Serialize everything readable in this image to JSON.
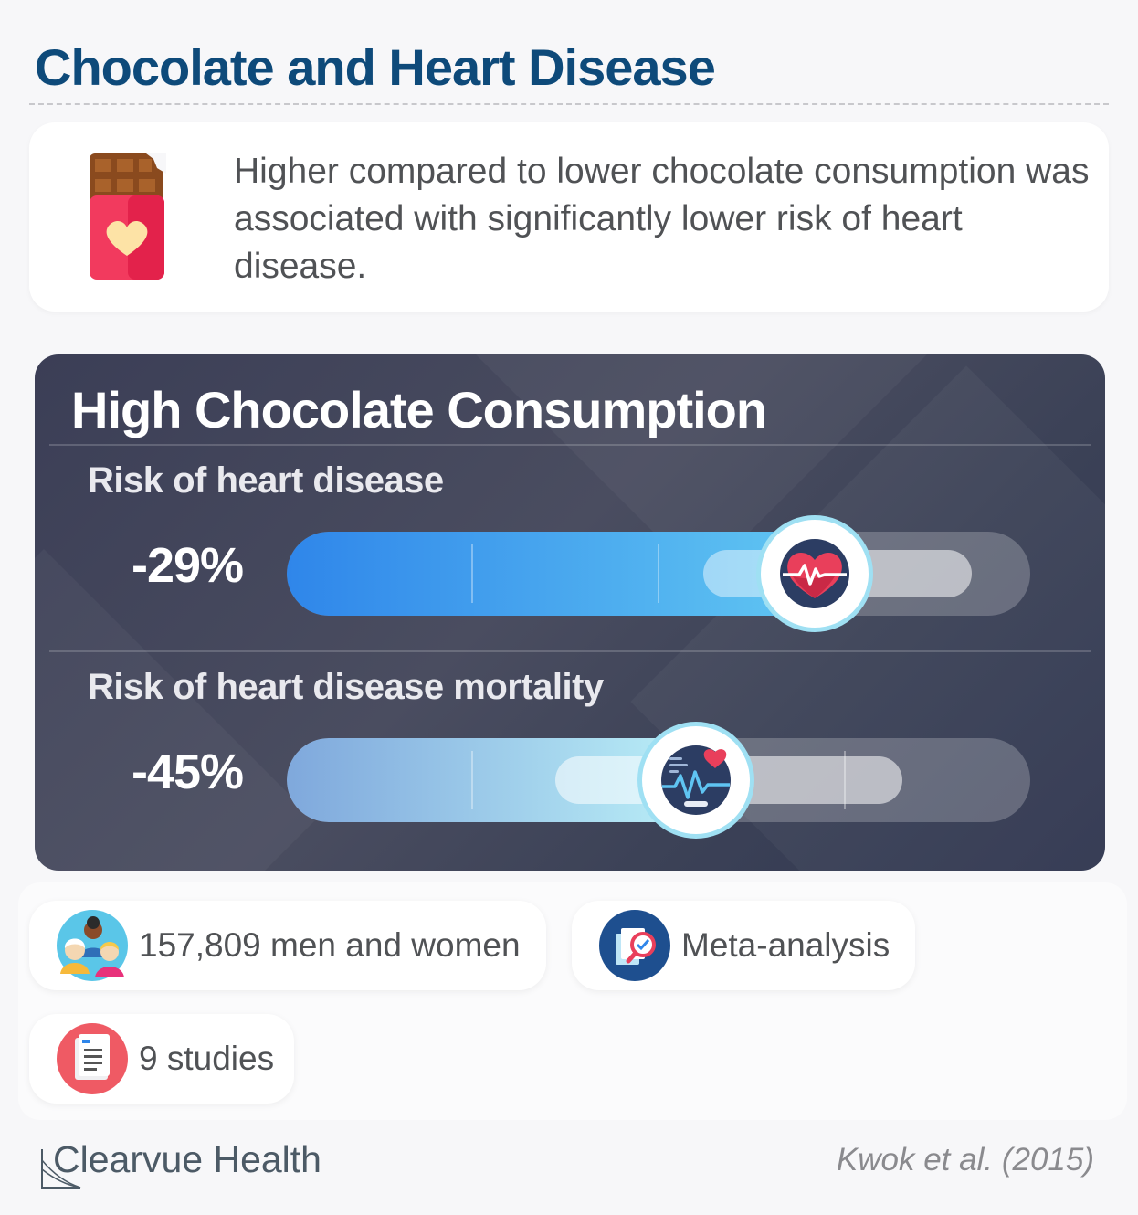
{
  "page": {
    "title": "Chocolate and Heart Disease"
  },
  "summary": {
    "icon": "chocolate-bar-heart-icon",
    "text": "Higher compared to lower chocolate consumption was associated with significantly lower risk of heart disease."
  },
  "panel": {
    "title": "High Chocolate Consumption",
    "metrics": [
      {
        "label": "Risk of heart disease",
        "value": "-29%",
        "icon": "heart-pulse-icon",
        "fill_colors": [
          "#2f86ea",
          "#5fc4f2"
        ]
      },
      {
        "label": "Risk of heart disease mortality",
        "value": "-45%",
        "icon": "heart-monitor-icon",
        "fill_colors": [
          "#7fa8dc",
          "#b8ecf6"
        ]
      }
    ]
  },
  "info": {
    "participants": {
      "icon": "people-group-icon",
      "text": "157,809 men and women"
    },
    "design": {
      "icon": "meta-analysis-icon",
      "text": "Meta-analysis"
    },
    "studies": {
      "icon": "document-icon",
      "text": "9 studies"
    }
  },
  "footer": {
    "brand": "Clearvue Health",
    "citation": "Kwok et al. (2015)"
  },
  "colors": {
    "title": "#0e4a7a",
    "panel_bg": "#3b3e56",
    "badge_ring": "#9fe0f3"
  }
}
